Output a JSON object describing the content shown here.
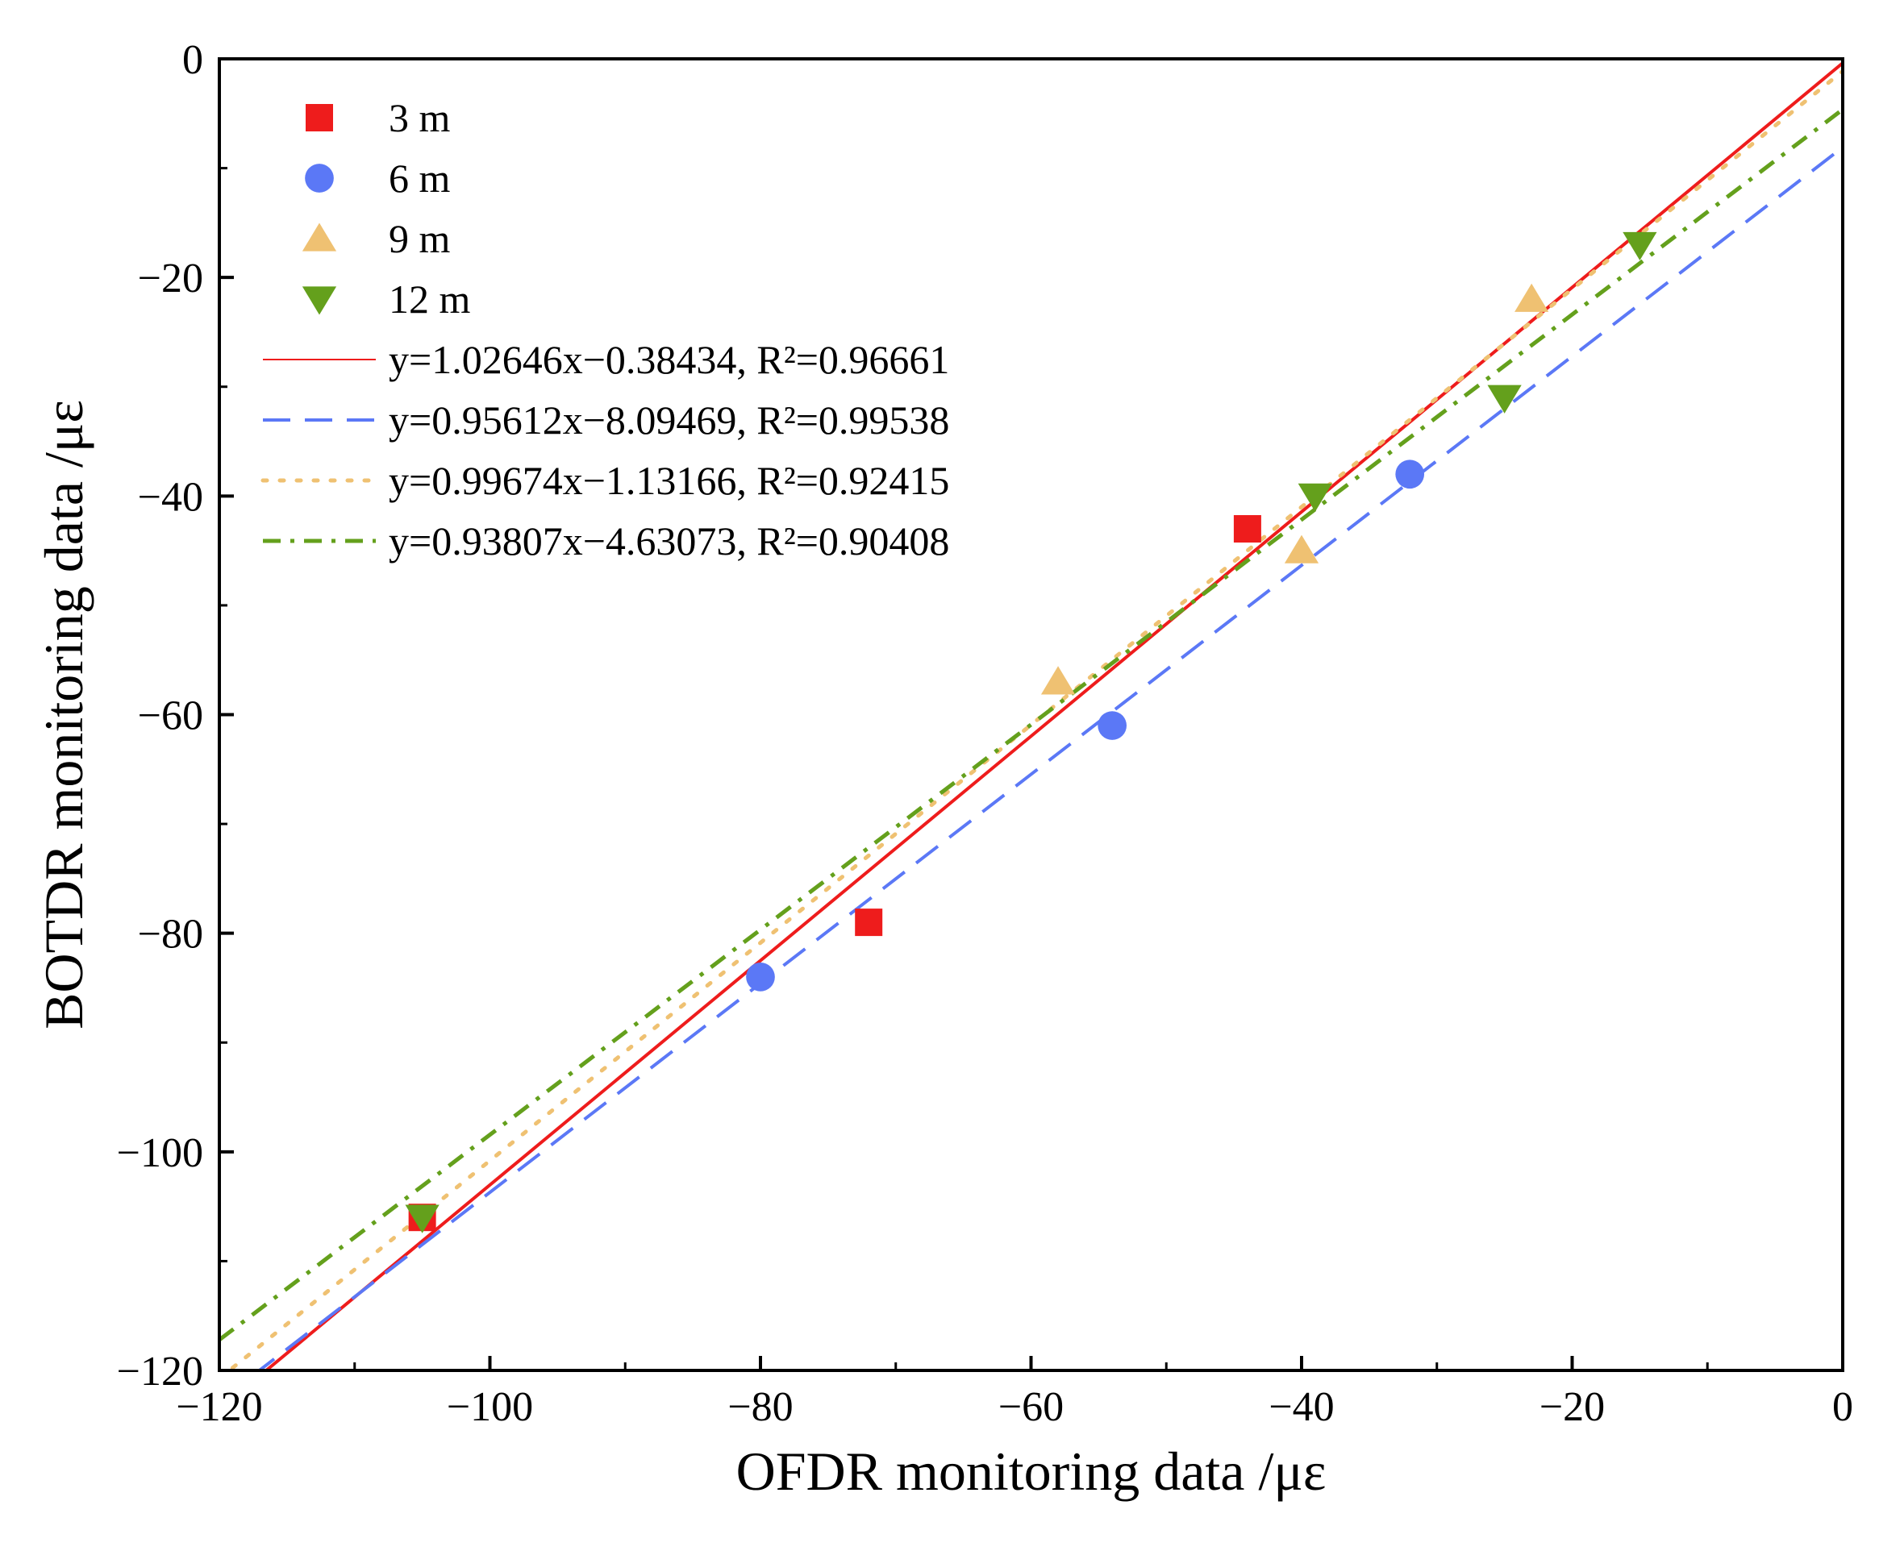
{
  "chart_data": {
    "type": "scatter",
    "title": "",
    "xlabel": "OFDR monitoring data /με",
    "ylabel": "BOTDR monitoring data /με",
    "xlim": [
      -120,
      0
    ],
    "ylim": [
      -120,
      0
    ],
    "xticks": [
      -120,
      -100,
      -80,
      -60,
      -40,
      -20,
      0
    ],
    "yticks": [
      -120,
      -100,
      -80,
      -60,
      -40,
      -20,
      0
    ],
    "xtick_labels": [
      "−120",
      "−100",
      "−80",
      "−60",
      "−40",
      "−20",
      "0"
    ],
    "ytick_labels": [
      "−120",
      "−100",
      "−80",
      "−60",
      "−40",
      "−20",
      "0"
    ],
    "grid": false,
    "legend_position": "top-left",
    "series": [
      {
        "name": "3 m",
        "marker": "square",
        "color": "#ee1c1c",
        "points": [
          [
            -105,
            -106
          ],
          [
            -72,
            -79
          ],
          [
            -44,
            -43
          ]
        ]
      },
      {
        "name": "6 m",
        "marker": "circle",
        "color": "#5b78f6",
        "points": [
          [
            -80,
            -84
          ],
          [
            -54,
            -61
          ],
          [
            -32,
            -38
          ]
        ]
      },
      {
        "name": "9 m",
        "marker": "triangle-up",
        "color": "#efc172",
        "points": [
          [
            -58,
            -57
          ],
          [
            -40,
            -45
          ],
          [
            -23,
            -22
          ]
        ]
      },
      {
        "name": "12 m",
        "marker": "triangle-down",
        "color": "#64a01c",
        "points": [
          [
            -105,
            -106
          ],
          [
            -39,
            -40
          ],
          [
            -25,
            -31
          ],
          [
            -15,
            -17
          ]
        ]
      }
    ],
    "fits": [
      {
        "label": "y=1.02646x−0.38434, R²=0.96661",
        "slope": 1.02646,
        "intercept": -0.38434,
        "color": "#ee1c1c",
        "dash": "solid"
      },
      {
        "label": "y=0.95612x−8.09469, R²=0.99538",
        "slope": 0.95612,
        "intercept": -8.09469,
        "color": "#5b78f6",
        "dash": "dashed"
      },
      {
        "label": "y=0.99674x−1.13166, R²=0.92415",
        "slope": 0.99674,
        "intercept": -1.13166,
        "color": "#efc172",
        "dash": "dotted"
      },
      {
        "label": "y=0.93807x−4.63073, R²=0.90408",
        "slope": 0.93807,
        "intercept": -4.63073,
        "color": "#64a01c",
        "dash": "dashdot"
      }
    ]
  }
}
